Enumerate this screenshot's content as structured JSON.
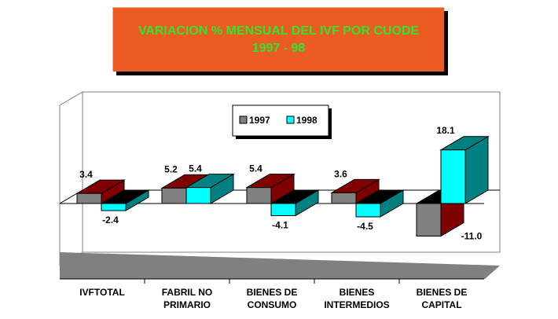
{
  "chart_data": {
    "type": "bar",
    "title": "VARIACION % MENSUAL DEL IVF POR CUODE",
    "subtitle": "1997 - 98",
    "categories": [
      [
        "IVFTOTAL"
      ],
      [
        "FABRIL NO",
        "PRIMARIO"
      ],
      [
        "BIENES DE",
        "CONSUMO"
      ],
      [
        "BIENES",
        "INTERMEDIOS"
      ],
      [
        "BIENES DE",
        "CAPITAL"
      ]
    ],
    "series": [
      {
        "name": "1997",
        "values": [
          3.4,
          5.2,
          5.4,
          3.6,
          -11.0
        ],
        "labels": [
          "3.4",
          "5.2",
          "5.4",
          "3.6",
          "-11.0"
        ],
        "color": "#808080",
        "side_color": "#800000"
      },
      {
        "name": "1998",
        "values": [
          -2.4,
          5.4,
          -4.1,
          -4.5,
          18.1
        ],
        "labels": [
          "-2.4",
          "5.4",
          "-4.1",
          "-4.5",
          "18.1"
        ],
        "color": "#00ffff",
        "side_color": "#008080"
      }
    ],
    "ylim": [
      -15,
      20
    ],
    "legend": "top-center",
    "grid": false
  }
}
